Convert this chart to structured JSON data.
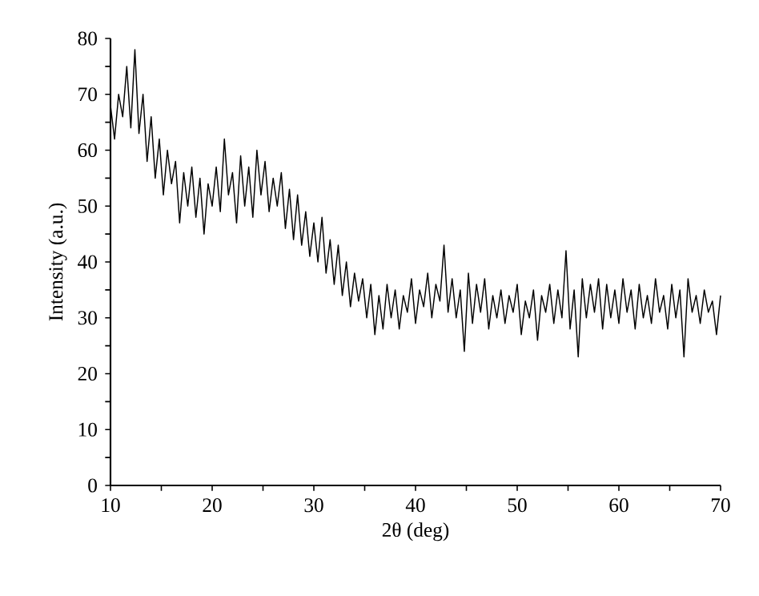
{
  "chart_data": {
    "type": "line",
    "xlabel": "2θ (deg)",
    "ylabel": "Intensity (a.u.)",
    "xlim": [
      10,
      70
    ],
    "ylim": [
      0,
      80
    ],
    "xticks": [
      10,
      {
        "value": 15,
        "label": null
      },
      20,
      {
        "value": 25,
        "label": null
      },
      30,
      {
        "value": 35,
        "label": null
      },
      40,
      {
        "value": 45,
        "label": null
      },
      50,
      {
        "value": 55,
        "label": null
      },
      60,
      {
        "value": 65,
        "label": null
      },
      70
    ],
    "yticks": [
      0,
      {
        "value": 5,
        "label": null
      },
      10,
      {
        "value": 15,
        "label": null
      },
      20,
      {
        "value": 25,
        "label": null
      },
      30,
      {
        "value": 35,
        "label": null
      },
      40,
      {
        "value": 45,
        "label": null
      },
      50,
      {
        "value": 55,
        "label": null
      },
      60,
      {
        "value": 65,
        "label": null
      },
      70,
      {
        "value": 75,
        "label": null
      },
      80
    ],
    "grid": false,
    "marker": "none",
    "line_style": "solid",
    "series": [
      {
        "color": "#000000",
        "x": [
          10.0,
          10.4,
          10.8,
          11.2,
          11.6,
          12.0,
          12.4,
          12.8,
          13.2,
          13.6,
          14.0,
          14.4,
          14.8,
          15.2,
          15.6,
          16.0,
          16.4,
          16.8,
          17.2,
          17.6,
          18.0,
          18.4,
          18.8,
          19.2,
          19.6,
          20.0,
          20.4,
          20.8,
          21.2,
          21.6,
          22.0,
          22.4,
          22.8,
          23.2,
          23.6,
          24.0,
          24.4,
          24.8,
          25.2,
          25.6,
          26.0,
          26.4,
          26.8,
          27.2,
          27.6,
          28.0,
          28.4,
          28.8,
          29.2,
          29.6,
          30.0,
          30.4,
          30.8,
          31.2,
          31.6,
          32.0,
          32.4,
          32.8,
          33.2,
          33.6,
          34.0,
          34.4,
          34.8,
          35.2,
          35.6,
          36.0,
          36.4,
          36.8,
          37.2,
          37.6,
          38.0,
          38.4,
          38.8,
          39.2,
          39.6,
          40.0,
          40.4,
          40.8,
          41.2,
          41.6,
          42.0,
          42.4,
          42.8,
          43.2,
          43.6,
          44.0,
          44.4,
          44.8,
          45.2,
          45.6,
          46.0,
          46.4,
          46.8,
          47.2,
          47.6,
          48.0,
          48.4,
          48.8,
          49.2,
          49.6,
          50.0,
          50.4,
          50.8,
          51.2,
          51.6,
          52.0,
          52.4,
          52.8,
          53.2,
          53.6,
          54.0,
          54.4,
          54.8,
          55.2,
          55.6,
          56.0,
          56.4,
          56.8,
          57.2,
          57.6,
          58.0,
          58.4,
          58.8,
          59.2,
          59.6,
          60.0,
          60.4,
          60.8,
          61.2,
          61.6,
          62.0,
          62.4,
          62.8,
          63.2,
          63.6,
          64.0,
          64.4,
          64.8,
          65.2,
          65.6,
          66.0,
          66.4,
          66.8,
          67.2,
          67.6,
          68.0,
          68.4,
          68.8,
          69.2,
          69.6,
          70.0
        ],
        "values": [
          68,
          62,
          70,
          66,
          75,
          64,
          78,
          63,
          70,
          58,
          66,
          55,
          62,
          52,
          60,
          54,
          58,
          47,
          56,
          50,
          57,
          48,
          55,
          45,
          54,
          50,
          57,
          49,
          62,
          52,
          56,
          47,
          59,
          50,
          57,
          48,
          60,
          52,
          58,
          49,
          55,
          50,
          56,
          46,
          53,
          44,
          52,
          43,
          49,
          41,
          47,
          40,
          48,
          38,
          44,
          36,
          43,
          34,
          40,
          32,
          38,
          33,
          37,
          30,
          36,
          27,
          34,
          28,
          36,
          30,
          35,
          28,
          34,
          31,
          37,
          29,
          35,
          32,
          38,
          30,
          36,
          33,
          43,
          31,
          37,
          30,
          35,
          24,
          38,
          29,
          36,
          31,
          37,
          28,
          34,
          30,
          35,
          29,
          34,
          31,
          36,
          27,
          33,
          30,
          35,
          26,
          34,
          31,
          36,
          29,
          35,
          30,
          42,
          28,
          35,
          23,
          37,
          30,
          36,
          31,
          37,
          28,
          36,
          30,
          35,
          29,
          37,
          31,
          35,
          28,
          36,
          30,
          34,
          29,
          37,
          31,
          34,
          28,
          36,
          30,
          35,
          23,
          37,
          31,
          34,
          29,
          35,
          31,
          33,
          27,
          34
        ]
      }
    ]
  }
}
